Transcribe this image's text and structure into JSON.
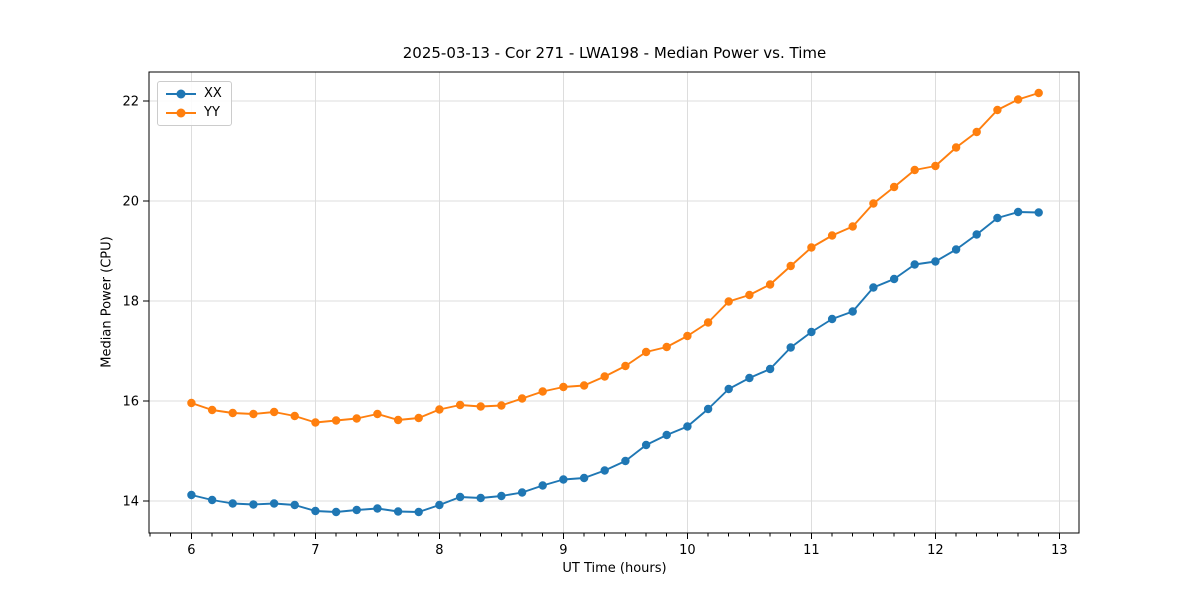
{
  "window": {
    "background": "#ffffff"
  },
  "chart_data": {
    "type": "line",
    "title": "2025-03-13 - Cor 271 - LWA198 - Median Power vs. Time",
    "xlabel": "UT Time (hours)",
    "ylabel": "Median Power (CPU)",
    "xlim": [
      5.658,
      13.158
    ],
    "ylim": [
      13.36,
      22.58
    ],
    "xticks": [
      6,
      7,
      8,
      9,
      10,
      11,
      12,
      13
    ],
    "yticks": [
      14,
      16,
      18,
      20,
      22
    ],
    "x_minor_tick_step_hours": 0.1667,
    "grid": true,
    "legend": {
      "position": "upper-left",
      "entries": [
        "XX",
        "YY"
      ]
    },
    "x": [
      6.0,
      6.167,
      6.333,
      6.5,
      6.667,
      6.833,
      7.0,
      7.167,
      7.333,
      7.5,
      7.667,
      7.833,
      8.0,
      8.167,
      8.333,
      8.5,
      8.667,
      8.833,
      9.0,
      9.167,
      9.333,
      9.5,
      9.667,
      9.833,
      10.0,
      10.167,
      10.333,
      10.5,
      10.667,
      10.833,
      11.0,
      11.167,
      11.333,
      11.5,
      11.667,
      11.833,
      12.0,
      12.167,
      12.333,
      12.5,
      12.667,
      12.833
    ],
    "series": [
      {
        "name": "XX",
        "color": "#1f77b4",
        "values": [
          14.12,
          14.02,
          13.95,
          13.93,
          13.95,
          13.92,
          13.8,
          13.78,
          13.82,
          13.85,
          13.79,
          13.78,
          13.92,
          14.08,
          14.06,
          14.1,
          14.17,
          14.31,
          14.43,
          14.46,
          14.61,
          14.8,
          15.12,
          15.32,
          15.49,
          15.84,
          16.24,
          16.46,
          16.64,
          17.07,
          17.38,
          17.64,
          17.79,
          18.27,
          18.44,
          18.73,
          18.79,
          19.03,
          19.33,
          19.66,
          19.78,
          19.77
        ]
      },
      {
        "name": "YY",
        "color": "#ff7f0e",
        "values": [
          15.96,
          15.82,
          15.76,
          15.74,
          15.78,
          15.7,
          15.57,
          15.61,
          15.65,
          15.74,
          15.62,
          15.66,
          15.83,
          15.92,
          15.89,
          15.91,
          16.05,
          16.19,
          16.28,
          16.31,
          16.49,
          16.7,
          16.98,
          17.08,
          17.3,
          17.57,
          17.99,
          18.12,
          18.33,
          18.7,
          19.07,
          19.31,
          19.49,
          19.95,
          20.28,
          20.62,
          20.7,
          21.07,
          21.38,
          21.82,
          22.03,
          22.16
        ]
      }
    ]
  },
  "colors": {
    "grid": "#dddddd",
    "spine": "#000000",
    "tick": "#000000",
    "text": "#000000",
    "legend_border": "#cccccc"
  }
}
